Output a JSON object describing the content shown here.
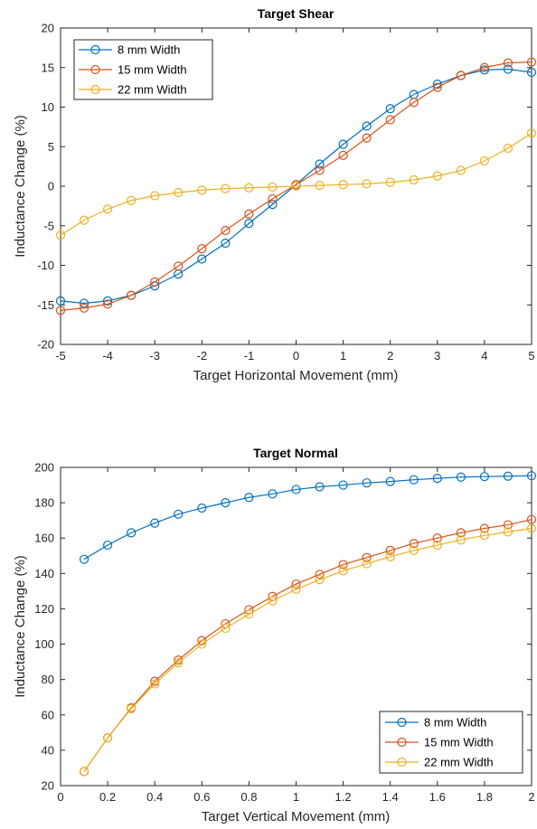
{
  "colors": {
    "s8": "#0072BD",
    "s15": "#D95319",
    "s22": "#EDB120"
  },
  "chart_data": [
    {
      "type": "line",
      "title": "Target Shear",
      "xlabel": "Target Horizontal Movement (mm)",
      "ylabel": "Inductance Change (%)",
      "xlim": [
        -5,
        5
      ],
      "ylim": [
        -20,
        20
      ],
      "xticks": [
        -5,
        -4,
        -3,
        -2,
        -1,
        0,
        1,
        2,
        3,
        4,
        5
      ],
      "yticks": [
        -20,
        -15,
        -10,
        -5,
        0,
        5,
        10,
        15,
        20
      ],
      "legend_position": "top-left",
      "x": [
        -5,
        -4.5,
        -4,
        -3.5,
        -3,
        -2.5,
        -2,
        -1.5,
        -1,
        -0.5,
        0,
        0.5,
        1,
        1.5,
        2,
        2.5,
        3,
        3.5,
        4,
        4.5,
        5
      ],
      "series": [
        {
          "name": "8 mm Width",
          "values": [
            -14.5,
            -14.8,
            -14.5,
            -13.8,
            -12.6,
            -11.1,
            -9.2,
            -7.2,
            -4.7,
            -2.3,
            0.2,
            2.8,
            5.3,
            7.6,
            9.8,
            11.6,
            12.9,
            14.0,
            14.7,
            14.8,
            14.4
          ]
        },
        {
          "name": "15 mm Width",
          "values": [
            -15.7,
            -15.4,
            -14.9,
            -13.8,
            -12.1,
            -10.1,
            -7.9,
            -5.6,
            -3.5,
            -1.6,
            0.2,
            2.0,
            3.9,
            6.1,
            8.4,
            10.6,
            12.5,
            14.0,
            15.0,
            15.6,
            15.7
          ]
        },
        {
          "name": "22 mm Width",
          "values": [
            -6.2,
            -4.3,
            -2.9,
            -1.8,
            -1.2,
            -0.8,
            -0.5,
            -0.3,
            -0.2,
            -0.1,
            0.0,
            0.1,
            0.2,
            0.3,
            0.5,
            0.8,
            1.3,
            2.0,
            3.2,
            4.8,
            6.7
          ]
        }
      ]
    },
    {
      "type": "line",
      "title": "Target Normal",
      "xlabel": "Target Vertical Movement (mm)",
      "ylabel": "Inductance Change (%)",
      "xlim": [
        0,
        2
      ],
      "ylim": [
        20,
        200
      ],
      "xticks": [
        0,
        0.2,
        0.4,
        0.6,
        0.8,
        1,
        1.2,
        1.4,
        1.6,
        1.8,
        2
      ],
      "yticks": [
        20,
        40,
        60,
        80,
        100,
        120,
        140,
        160,
        180,
        200
      ],
      "legend_position": "bottom-right",
      "x": [
        0.1,
        0.2,
        0.3,
        0.4,
        0.5,
        0.6,
        0.7,
        0.8,
        0.9,
        1.0,
        1.1,
        1.2,
        1.3,
        1.4,
        1.5,
        1.6,
        1.7,
        1.8,
        1.9,
        2.0
      ],
      "series": [
        {
          "name": "8 mm Width",
          "values": [
            148,
            156,
            163,
            168.5,
            173.5,
            177,
            180,
            183,
            185,
            187.5,
            189,
            190,
            191.2,
            192,
            193,
            193.8,
            194.5,
            194.8,
            195,
            195.3
          ]
        },
        {
          "name": "15 mm Width",
          "values": [
            28,
            47,
            64,
            79,
            91,
            102,
            111.5,
            119.5,
            127,
            134,
            139.5,
            145,
            149,
            153,
            157,
            160,
            163,
            165.5,
            167.5,
            170.5
          ]
        },
        {
          "name": "22 mm Width",
          "values": [
            28,
            47,
            63.5,
            77.5,
            89.5,
            100,
            109,
            117,
            124.5,
            131,
            136.5,
            141.5,
            145.5,
            149.5,
            153,
            156,
            159,
            161.5,
            163.5,
            165.5
          ]
        }
      ]
    }
  ]
}
